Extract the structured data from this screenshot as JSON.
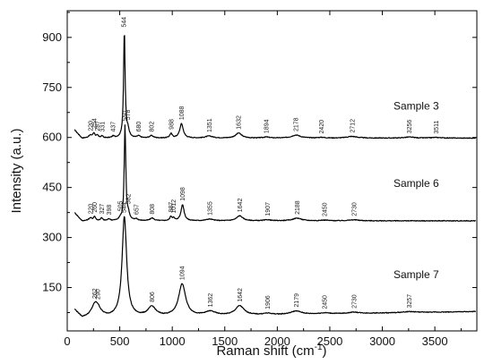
{
  "chart_data": {
    "type": "line",
    "xlabel": "Raman shift (cm",
    "xlabel_sup": "-1",
    "xlabel_end": ")",
    "ylabel": "Intensity (a.u.)",
    "xlim": [
      0,
      3900
    ],
    "ylim": [
      20,
      980
    ],
    "x_ticks": [
      0,
      500,
      1000,
      1500,
      2000,
      2500,
      3000,
      3500
    ],
    "x_tick_labels": [
      "0",
      "500",
      "1000",
      "1500",
      "2000",
      "2500",
      "3000",
      "3500"
    ],
    "y_ticks": [
      150,
      300,
      450,
      600,
      750,
      900
    ],
    "y_tick_labels": [
      "150",
      "300",
      "450",
      "600",
      "750",
      "900"
    ],
    "grid": false,
    "series": [
      {
        "name": "Sample 3",
        "baseline": 598,
        "peaks": [
          {
            "x": 220,
            "height": 8,
            "width": 20,
            "label": "220"
          },
          {
            "x": 254,
            "height": 14,
            "width": 12,
            "label": "254"
          },
          {
            "x": 287,
            "height": 7,
            "width": 12,
            "label": "287"
          },
          {
            "x": 331,
            "height": 6,
            "width": 12,
            "label": "331"
          },
          {
            "x": 437,
            "height": 5,
            "width": 14,
            "label": "437"
          },
          {
            "x": 544,
            "height": 318,
            "width": 9,
            "label": "544"
          },
          {
            "x": 578,
            "height": 22,
            "width": 14,
            "label": "578"
          },
          {
            "x": 680,
            "height": 6,
            "width": 18,
            "label": "680"
          },
          {
            "x": 802,
            "height": 7,
            "width": 22,
            "label": "802"
          },
          {
            "x": 988,
            "height": 13,
            "width": 14,
            "label": "988"
          },
          {
            "x": 1088,
            "height": 43,
            "width": 20,
            "label": "1088"
          },
          {
            "x": 1351,
            "height": 6,
            "width": 40,
            "label": "1351"
          },
          {
            "x": 1632,
            "height": 15,
            "width": 35,
            "label": "1632"
          },
          {
            "x": 1894,
            "height": 3,
            "width": 35,
            "label": "1894"
          },
          {
            "x": 2178,
            "height": 9,
            "width": 50,
            "label": "2178"
          },
          {
            "x": 2420,
            "height": 2,
            "width": 40,
            "label": "2420"
          },
          {
            "x": 2712,
            "height": 5,
            "width": 60,
            "label": "2712"
          },
          {
            "x": 3256,
            "height": 3,
            "width": 60,
            "label": "3256"
          },
          {
            "x": 3511,
            "height": 2,
            "width": 60,
            "label": "3511"
          }
        ]
      },
      {
        "name": "Sample 6",
        "baseline": 350,
        "peaks": [
          {
            "x": 220,
            "height": 8,
            "width": 20,
            "label": "220"
          },
          {
            "x": 260,
            "height": 12,
            "width": 12,
            "label": "260"
          },
          {
            "x": 327,
            "height": 8,
            "width": 12,
            "label": "327"
          },
          {
            "x": 398,
            "height": 5,
            "width": 14,
            "label": "398"
          },
          {
            "x": 505,
            "height": 6,
            "width": 12,
            "label": "505"
          },
          {
            "x": 550,
            "height": 285,
            "width": 9,
            "label": "550"
          },
          {
            "x": 582,
            "height": 18,
            "width": 14,
            "label": "582"
          },
          {
            "x": 657,
            "height": 5,
            "width": 16,
            "label": "657"
          },
          {
            "x": 808,
            "height": 8,
            "width": 22,
            "label": "808"
          },
          {
            "x": 987,
            "height": 12,
            "width": 12,
            "label": "987"
          },
          {
            "x": 1012,
            "height": 7,
            "width": 12,
            "label": "1012"
          },
          {
            "x": 1098,
            "height": 48,
            "width": 18,
            "label": "1098"
          },
          {
            "x": 1355,
            "height": 5,
            "width": 40,
            "label": "1355"
          },
          {
            "x": 1642,
            "height": 15,
            "width": 35,
            "label": "1642"
          },
          {
            "x": 1907,
            "height": 3,
            "width": 35,
            "label": "1907"
          },
          {
            "x": 2188,
            "height": 8,
            "width": 50,
            "label": "2188"
          },
          {
            "x": 2450,
            "height": 2,
            "width": 40,
            "label": "2450"
          },
          {
            "x": 2730,
            "height": 3,
            "width": 60,
            "label": "2730"
          }
        ]
      },
      {
        "name": "Sample 7",
        "baseline": 58,
        "peaks": [
          {
            "x": 262,
            "height": 30,
            "width": 40,
            "label": "262"
          },
          {
            "x": 290,
            "height": 20,
            "width": 40,
            "label": "290"
          },
          {
            "x": 544,
            "height": 300,
            "width": 26,
            "label": "544"
          },
          {
            "x": 806,
            "height": 28,
            "width": 45,
            "label": "806"
          },
          {
            "x": 1094,
            "height": 96,
            "width": 40,
            "label": "1094"
          },
          {
            "x": 1362,
            "height": 12,
            "width": 60,
            "label": "1362"
          },
          {
            "x": 1642,
            "height": 28,
            "width": 50,
            "label": "1642"
          },
          {
            "x": 1906,
            "height": 4,
            "width": 50,
            "label": "1906"
          },
          {
            "x": 2179,
            "height": 10,
            "width": 60,
            "label": "2179"
          },
          {
            "x": 2450,
            "height": 3,
            "width": 60,
            "label": "2450"
          },
          {
            "x": 2730,
            "height": 4,
            "width": 60,
            "label": "2730"
          },
          {
            "x": 3257,
            "height": 3,
            "width": 80,
            "label": "3257"
          }
        ]
      }
    ]
  }
}
